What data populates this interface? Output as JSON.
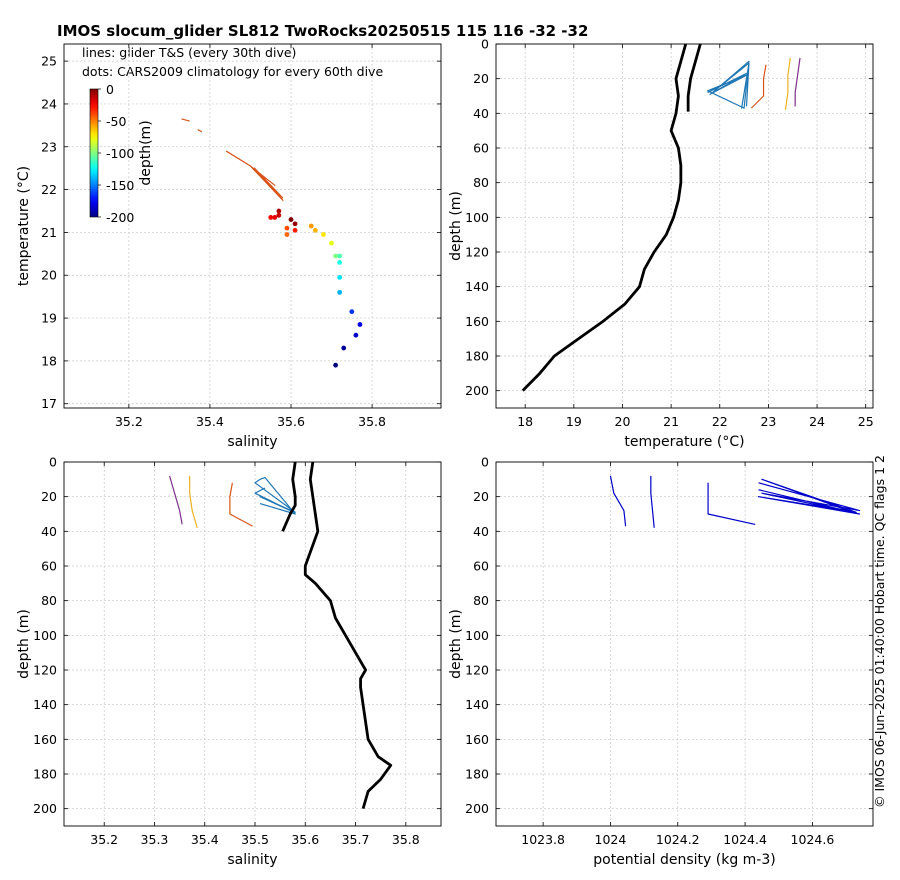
{
  "title": "IMOS slocum_glider SL812 TwoRocks20250515 115  116  -32  -32",
  "notes": {
    "line1": "lines: glider T&S (every 30th dive)",
    "line2": "dots: CARS2009 climatology for every 60th dive"
  },
  "credit": "© IMOS 06-Jun-2025 01:40:00 Hobart time. QC flags 1  2",
  "colors": {
    "profile": "#000000",
    "grid": "#c8c8c8",
    "glider_blue": "#1f77b4",
    "glider_orange": "#d95319",
    "glider_yellow": "#edb120",
    "glider_purple": "#7e2f8e",
    "density_line": "#0000cc"
  },
  "colorbar": {
    "label": "depth(m)",
    "ticks": [
      "0",
      "-50",
      "-100",
      "-150",
      "-200"
    ]
  },
  "chart_data": [
    {
      "id": "ts",
      "type": "scatter",
      "xlabel": "salinity",
      "ylabel": "temperature (°C)",
      "xlim": [
        35.04,
        35.97
      ],
      "ylim": [
        16.9,
        25.4
      ],
      "xticks": [
        35.2,
        35.4,
        35.6,
        35.8
      ],
      "xtick_labels": [
        "35.2",
        "35.4",
        "35.6",
        "35.8"
      ],
      "yticks": [
        17,
        18,
        19,
        20,
        21,
        22,
        23,
        24,
        25
      ],
      "ytick_labels": [
        "17",
        "18",
        "19",
        "20",
        "21",
        "22",
        "23",
        "24",
        "25"
      ],
      "dots": {
        "salinity": [
          35.6,
          35.61,
          35.57,
          35.57,
          35.56,
          35.55,
          35.59,
          35.59,
          35.61,
          35.65,
          35.66,
          35.68,
          35.7,
          35.71,
          35.72,
          35.72,
          35.72,
          35.72,
          35.75,
          35.77,
          35.76,
          35.73,
          35.71
        ],
        "temperature": [
          21.3,
          21.2,
          21.5,
          21.4,
          21.35,
          21.35,
          21.1,
          20.95,
          21.05,
          21.15,
          21.05,
          20.95,
          20.75,
          20.45,
          20.45,
          20.3,
          19.95,
          19.6,
          19.15,
          18.85,
          18.6,
          18.3,
          17.9
        ],
        "depth": [
          0,
          -5,
          -10,
          -15,
          -20,
          -25,
          -40,
          -45,
          -30,
          -55,
          -60,
          -70,
          -80,
          -100,
          -110,
          -120,
          -130,
          -140,
          -165,
          -180,
          -185,
          -195,
          -200
        ]
      },
      "glider_lines": [
        {
          "color_key": "glider_orange",
          "salinity": [
            35.33,
            35.35
          ],
          "temperature": [
            23.65,
            23.6
          ]
        },
        {
          "color_key": "glider_orange",
          "salinity": [
            35.37,
            35.38
          ],
          "temperature": [
            23.4,
            23.35
          ]
        },
        {
          "color_key": "glider_orange",
          "salinity": [
            35.44,
            35.5,
            35.56,
            35.5,
            35.58,
            35.51,
            35.58
          ],
          "temperature": [
            22.9,
            22.55,
            22.1,
            22.55,
            21.75,
            22.5,
            21.8
          ]
        }
      ]
    },
    {
      "id": "temp",
      "type": "line",
      "xlabel": "temperature (°C)",
      "ylabel": "depth (m)",
      "xlim": [
        17.4,
        25.15
      ],
      "ylim": [
        0,
        210
      ],
      "y_reversed": true,
      "xticks": [
        18,
        19,
        20,
        21,
        22,
        23,
        24,
        25
      ],
      "xtick_labels": [
        "18",
        "19",
        "20",
        "21",
        "22",
        "23",
        "24",
        "25"
      ],
      "yticks": [
        0,
        20,
        40,
        60,
        80,
        100,
        120,
        140,
        160,
        180,
        200
      ],
      "ytick_labels": [
        "0",
        "20",
        "40",
        "60",
        "80",
        "100",
        "120",
        "140",
        "160",
        "180",
        "200"
      ],
      "profile": {
        "x": [
          17.95,
          18.3,
          18.6,
          19.1,
          19.6,
          20.05,
          20.35,
          20.45,
          20.65,
          20.9,
          21.05,
          21.15,
          21.2,
          21.2,
          21.15,
          21.0,
          21.1,
          21.15,
          21.1,
          21.2,
          21.3
        ],
        "y": [
          200,
          190,
          180,
          170,
          160,
          150,
          140,
          130,
          120,
          110,
          100,
          90,
          80,
          70,
          60,
          50,
          40,
          30,
          20,
          10,
          0
        ]
      },
      "profile2": {
        "x": [
          21.35,
          21.35,
          21.4,
          21.5,
          21.6
        ],
        "y": [
          39,
          30,
          20,
          10,
          0
        ]
      },
      "glider_lines": [
        {
          "color_key": "glider_blue",
          "x": [
            21.75,
            22.55,
            21.8,
            22.55,
            21.75,
            22.5,
            22.6,
            21.85,
            22.6,
            22.45,
            22.6,
            22.55
          ],
          "y": [
            28,
            17,
            29,
            18,
            27,
            37,
            10,
            28,
            11,
            37,
            11,
            36
          ]
        },
        {
          "color_key": "glider_orange",
          "x": [
            22.95,
            22.9,
            22.9,
            22.65
          ],
          "y": [
            12,
            20,
            30,
            37
          ]
        },
        {
          "color_key": "glider_yellow",
          "x": [
            23.45,
            23.4,
            23.4,
            23.35
          ],
          "y": [
            8,
            18,
            28,
            38
          ]
        },
        {
          "color_key": "glider_purple",
          "x": [
            23.65,
            23.6,
            23.55,
            23.55
          ],
          "y": [
            8,
            18,
            28,
            36
          ]
        }
      ]
    },
    {
      "id": "sal",
      "type": "line",
      "xlabel": "salinity",
      "ylabel": "depth (m)",
      "xlim": [
        35.12,
        35.87
      ],
      "ylim": [
        0,
        210
      ],
      "y_reversed": true,
      "xticks": [
        35.2,
        35.3,
        35.4,
        35.5,
        35.6,
        35.7,
        35.8
      ],
      "xtick_labels": [
        "35.2",
        "35.3",
        "35.4",
        "35.5",
        "35.6",
        "35.7",
        "35.8"
      ],
      "yticks": [
        0,
        20,
        40,
        60,
        80,
        100,
        120,
        140,
        160,
        180,
        200
      ],
      "ytick_labels": [
        "0",
        "20",
        "40",
        "60",
        "80",
        "100",
        "120",
        "140",
        "160",
        "180",
        "200"
      ],
      "profile": {
        "x": [
          35.715,
          35.725,
          35.75,
          35.77,
          35.745,
          35.725,
          35.72,
          35.715,
          35.71,
          35.71,
          35.72,
          35.7,
          35.68,
          35.66,
          35.65,
          35.62,
          35.6,
          35.6,
          35.625,
          35.62,
          35.615,
          35.61,
          35.615
        ],
        "y": [
          200,
          190,
          183,
          175,
          170,
          160,
          150,
          140,
          130,
          125,
          120,
          110,
          100,
          90,
          80,
          70,
          65,
          60,
          40,
          30,
          20,
          10,
          0
        ]
      },
      "profile2": {
        "x": [
          35.555,
          35.57,
          35.58,
          35.58,
          35.575,
          35.58
        ],
        "y": [
          40,
          30,
          25,
          20,
          10,
          0
        ]
      },
      "glider_lines": [
        {
          "color_key": "glider_blue",
          "x": [
            35.52,
            35.5,
            35.57,
            35.51,
            35.58,
            35.5,
            35.51,
            35.52,
            35.58,
            35.51
          ],
          "y": [
            15,
            18,
            28,
            20,
            29,
            12,
            10,
            9,
            30,
            24
          ]
        },
        {
          "color_key": "glider_orange",
          "x": [
            35.455,
            35.45,
            35.45,
            35.495
          ],
          "y": [
            12,
            20,
            30,
            37
          ]
        },
        {
          "color_key": "glider_yellow",
          "x": [
            35.37,
            35.37,
            35.375,
            35.385
          ],
          "y": [
            8,
            18,
            28,
            38
          ]
        },
        {
          "color_key": "glider_purple",
          "x": [
            35.33,
            35.34,
            35.35,
            35.355
          ],
          "y": [
            8,
            18,
            28,
            36
          ]
        }
      ]
    },
    {
      "id": "dens",
      "type": "line",
      "xlabel": "potential density (kg m-3)",
      "ylabel": "depth (m)",
      "xlim": [
        1023.66,
        1024.78
      ],
      "ylim": [
        0,
        210
      ],
      "y_reversed": true,
      "xticks": [
        1023.8,
        1024.0,
        1024.2,
        1024.4,
        1024.6
      ],
      "xtick_labels": [
        "1023.8",
        "1024",
        "1024.2",
        "1024.4",
        "1024.6"
      ],
      "yticks": [
        0,
        20,
        40,
        60,
        80,
        100,
        120,
        140,
        160,
        180,
        200
      ],
      "ytick_labels": [
        "0",
        "20",
        "40",
        "60",
        "80",
        "100",
        "120",
        "140",
        "160",
        "180",
        "200"
      ],
      "glider_lines": [
        {
          "color_key": "density_line",
          "x": [
            1024.0,
            1024.01,
            1024.04,
            1024.045
          ],
          "y": [
            8,
            18,
            28,
            37
          ]
        },
        {
          "color_key": "density_line",
          "x": [
            1024.12,
            1024.12,
            1024.125,
            1024.13
          ],
          "y": [
            8,
            18,
            28,
            38
          ]
        },
        {
          "color_key": "density_line",
          "x": [
            1024.29,
            1024.29,
            1024.29,
            1024.43
          ],
          "y": [
            12,
            20,
            30,
            36
          ]
        },
        {
          "color_key": "density_line",
          "x": [
            1024.44,
            1024.74,
            1024.45,
            1024.74,
            1024.44,
            1024.73,
            1024.45,
            1024.72,
            1024.44
          ],
          "y": [
            12,
            28,
            18,
            30,
            20,
            29,
            10,
            29,
            16
          ]
        }
      ]
    }
  ]
}
